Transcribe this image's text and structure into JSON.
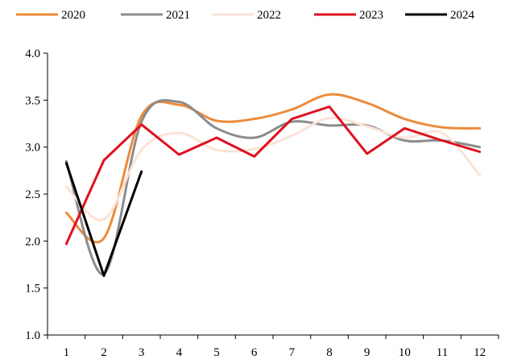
{
  "chart_data": {
    "type": "line",
    "title": "",
    "xlabel": "",
    "ylabel": "",
    "categories": [
      "1",
      "2",
      "3",
      "4",
      "5",
      "6",
      "7",
      "8",
      "9",
      "10",
      "11",
      "12"
    ],
    "ylim": [
      1.0,
      4.0
    ],
    "yticks": [
      "1.0",
      "1.5",
      "2.0",
      "2.5",
      "3.0",
      "3.5",
      "4.0"
    ],
    "grid": false,
    "legend": "top",
    "series": [
      {
        "name": "2020",
        "color": "#ED8B3A",
        "smooth": true,
        "values": [
          2.3,
          2.03,
          3.33,
          3.45,
          3.28,
          3.3,
          3.4,
          3.56,
          3.47,
          3.3,
          3.21,
          3.2
        ]
      },
      {
        "name": "2021",
        "color": "#8C8C8C",
        "smooth": true,
        "values": [
          2.85,
          1.65,
          3.27,
          3.48,
          3.2,
          3.1,
          3.27,
          3.23,
          3.23,
          3.07,
          3.07,
          3.0
        ]
      },
      {
        "name": "2022",
        "color": "#FBE3D6",
        "smooth": true,
        "values": [
          2.58,
          2.23,
          2.97,
          3.15,
          2.97,
          2.98,
          3.12,
          3.31,
          3.22,
          3.1,
          3.15,
          2.7
        ]
      },
      {
        "name": "2023",
        "color": "#E0101F",
        "smooth": false,
        "values": [
          1.97,
          2.86,
          3.24,
          2.92,
          3.1,
          2.9,
          3.3,
          3.43,
          2.93,
          3.2,
          3.07,
          2.95
        ]
      },
      {
        "name": "2024",
        "color": "#000000",
        "smooth": false,
        "values": [
          2.83,
          1.63,
          2.74,
          null,
          null,
          null,
          null,
          null,
          null,
          null,
          null,
          null
        ]
      }
    ]
  }
}
